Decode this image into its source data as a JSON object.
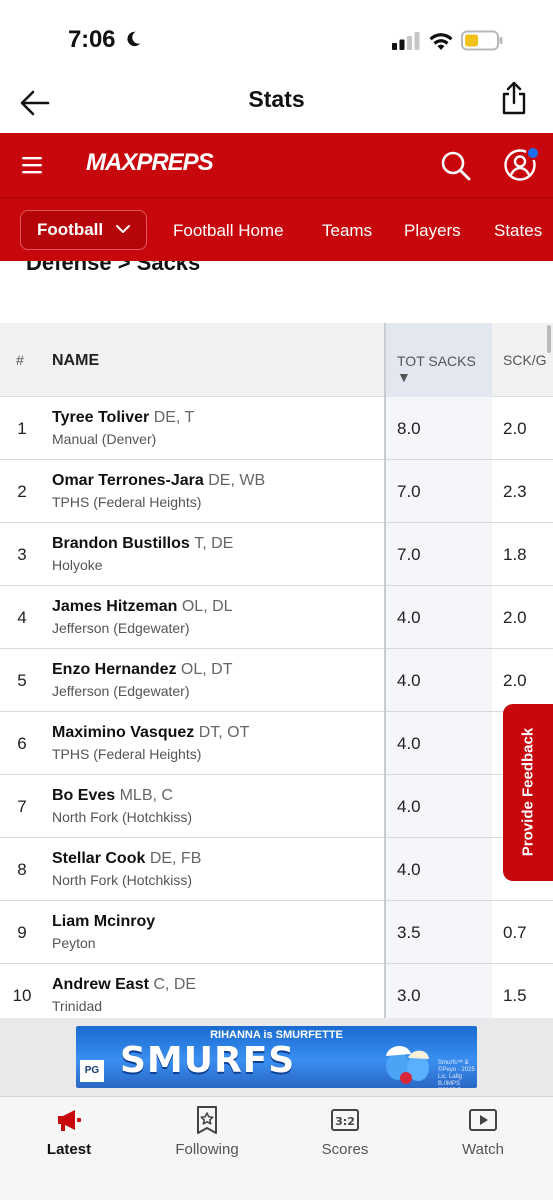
{
  "status": {
    "time": "7:06"
  },
  "header": {
    "title": "Stats"
  },
  "brand": {
    "logo_text": "MAXPREPS",
    "accent": "#c8070c"
  },
  "sport_nav": {
    "selected": "Football",
    "links": [
      "Football Home",
      "Teams",
      "Players",
      "States"
    ]
  },
  "section": {
    "heading": "Defense > Sacks"
  },
  "table": {
    "columns": {
      "rank": "#",
      "name": "NAME",
      "sacks": "TOT SACKS ▼",
      "per_game": "SCK/G"
    },
    "rows": [
      {
        "rank": "1",
        "name": "Tyree Toliver",
        "pos": "DE, T",
        "school": "Manual (Denver)",
        "sacks": "8.0",
        "per_game": "2.0"
      },
      {
        "rank": "2",
        "name": "Omar Terrones-Jara",
        "pos": "DE, WB",
        "school": "TPHS (Federal Heights)",
        "sacks": "7.0",
        "per_game": "2.3"
      },
      {
        "rank": "3",
        "name": "Brandon Bustillos",
        "pos": "T, DE",
        "school": "Holyoke",
        "sacks": "7.0",
        "per_game": "1.8"
      },
      {
        "rank": "4",
        "name": "James Hitzeman",
        "pos": "OL, DL",
        "school": "Jefferson (Edgewater)",
        "sacks": "4.0",
        "per_game": "2.0"
      },
      {
        "rank": "5",
        "name": "Enzo Hernandez",
        "pos": "OL, DT",
        "school": "Jefferson (Edgewater)",
        "sacks": "4.0",
        "per_game": "2.0"
      },
      {
        "rank": "6",
        "name": "Maximino Vasquez",
        "pos": "DT, OT",
        "school": "TPHS (Federal Heights)",
        "sacks": "4.0",
        "per_game": ""
      },
      {
        "rank": "7",
        "name": "Bo Eves",
        "pos": "MLB, C",
        "school": "North Fork (Hotchkiss)",
        "sacks": "4.0",
        "per_game": ""
      },
      {
        "rank": "8",
        "name": "Stellar Cook",
        "pos": "DE, FB",
        "school": "North Fork (Hotchkiss)",
        "sacks": "4.0",
        "per_game": ""
      },
      {
        "rank": "9",
        "name": "Liam Mcinroy",
        "pos": "",
        "school": "Peyton",
        "sacks": "3.5",
        "per_game": "0.7"
      },
      {
        "rank": "10",
        "name": "Andrew East",
        "pos": "C, DE",
        "school": "Trinidad",
        "sacks": "3.0",
        "per_game": "1.5"
      }
    ]
  },
  "feedback": {
    "label": "Provide Feedback"
  },
  "ad": {
    "top": "RIHANNA is SMURFETTE",
    "main": "SMURFS",
    "rating": "PG",
    "fine_print": "Smurfs™ & ©Peyo - 2025 Lic. Lafig B./IMPS ©2025 Par. Pics."
  },
  "tabs": [
    {
      "label": "Latest",
      "icon": "megaphone-icon"
    },
    {
      "label": "Following",
      "icon": "star-badge-icon"
    },
    {
      "label": "Scores",
      "icon": "scoreboard-icon"
    },
    {
      "label": "Watch",
      "icon": "play-icon"
    }
  ]
}
